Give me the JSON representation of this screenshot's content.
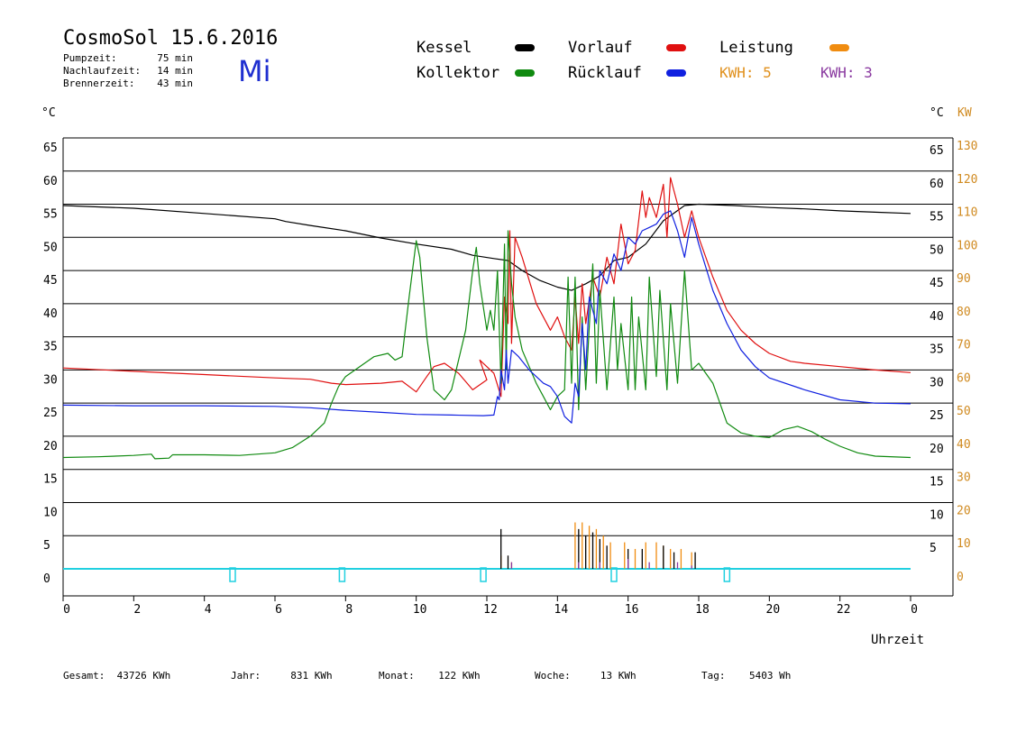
{
  "header": {
    "title": "CosmoSol 15.6.2016",
    "weekday": "Mi",
    "info": [
      {
        "label": "Pumpzeit:",
        "value": "75 min"
      },
      {
        "label": "Nachlaufzeit:",
        "value": "14 min"
      },
      {
        "label": "Brennerzeit:",
        "value": "43 min"
      }
    ]
  },
  "legend": {
    "items": [
      {
        "name": "Kessel",
        "color": "#000000"
      },
      {
        "name": "Vorlauf",
        "color": "#e01010"
      },
      {
        "name": "Leistung",
        "color": "#f08c10"
      },
      {
        "name": "Kollektor",
        "color": "#108a10"
      },
      {
        "name": "Rücklauf",
        "color": "#1020e0"
      }
    ],
    "kwh_orange": "KWH: 5",
    "kwh_purple": "KWH: 3"
  },
  "axes": {
    "left_unit": "°C",
    "right_unit_c": "°C",
    "right_unit_kw": "KW",
    "xlabel": "Uhrzeit"
  },
  "footer": [
    {
      "label": "Gesamt:",
      "value": "43726 KWh"
    },
    {
      "label": "Jahr:",
      "value": "831 KWh"
    },
    {
      "label": "Monat:",
      "value": "122 KWh"
    },
    {
      "label": "Woche:",
      "value": "13 KWh"
    },
    {
      "label": "Tag:",
      "value": "5403 Wh"
    }
  ],
  "chart_data": {
    "type": "line",
    "x_ticks": [
      "0",
      "2",
      "4",
      "6",
      "8",
      "10",
      "12",
      "14",
      "16",
      "18",
      "20",
      "22",
      "0"
    ],
    "xlim": [
      0,
      24
    ],
    "y_left_ticks": [
      "65",
      "60",
      "55",
      "50",
      "45",
      "40",
      "35",
      "30",
      "25",
      "20",
      "15",
      "10",
      "5",
      "0"
    ],
    "y_right_c_ticks": [
      "65",
      "60",
      "55",
      "50",
      "45",
      "40",
      "35",
      "30",
      "25",
      "20",
      "15",
      "10",
      "5",
      "0"
    ],
    "y_right_kw_ticks": [
      "130",
      "120",
      "110",
      "100",
      "90",
      "80",
      "70",
      "60",
      "50",
      "40",
      "30",
      "20",
      "10",
      "0"
    ],
    "ylim": [
      0,
      65
    ],
    "series": [
      {
        "name": "Kessel",
        "color": "#000000",
        "points": [
          [
            0,
            54.8
          ],
          [
            2,
            54.4
          ],
          [
            4,
            53.6
          ],
          [
            6,
            52.8
          ],
          [
            6.3,
            52.4
          ],
          [
            7,
            51.8
          ],
          [
            8,
            51
          ],
          [
            9,
            49.9
          ],
          [
            10,
            49
          ],
          [
            11,
            48.2
          ],
          [
            11.6,
            47.3
          ],
          [
            12.2,
            46.8
          ],
          [
            12.6,
            46.5
          ],
          [
            13,
            45
          ],
          [
            13.5,
            43.5
          ],
          [
            14,
            42.5
          ],
          [
            14.4,
            42
          ],
          [
            14.8,
            43
          ],
          [
            15.2,
            44.2
          ],
          [
            15.6,
            46.5
          ],
          [
            16,
            47
          ],
          [
            16.5,
            49
          ],
          [
            17,
            52.5
          ],
          [
            17.6,
            54.8
          ],
          [
            18,
            55
          ],
          [
            19,
            54.8
          ],
          [
            20,
            54.5
          ],
          [
            21,
            54.3
          ],
          [
            22,
            54
          ],
          [
            23,
            53.8
          ],
          [
            24,
            53.6
          ]
        ]
      },
      {
        "name": "Vorlauf",
        "color": "#e01010",
        "points": [
          [
            0,
            30.3
          ],
          [
            2,
            29.8
          ],
          [
            4,
            29.3
          ],
          [
            6,
            28.8
          ],
          [
            7,
            28.6
          ],
          [
            7.6,
            28
          ],
          [
            8,
            27.8
          ],
          [
            9,
            28
          ],
          [
            9.6,
            28.3
          ],
          [
            10,
            26.7
          ],
          [
            10.3,
            29
          ],
          [
            10.5,
            30.5
          ],
          [
            10.8,
            31
          ],
          [
            11.2,
            29.5
          ],
          [
            11.6,
            27
          ],
          [
            12,
            28.5
          ],
          [
            11.8,
            31.5
          ],
          [
            12.2,
            29.5
          ],
          [
            12.4,
            26
          ],
          [
            12.5,
            41
          ],
          [
            12.6,
            37
          ],
          [
            12.65,
            51
          ],
          [
            12.7,
            34
          ],
          [
            12.8,
            50
          ],
          [
            13,
            47
          ],
          [
            13.4,
            40
          ],
          [
            13.8,
            36
          ],
          [
            14,
            38
          ],
          [
            14.2,
            35
          ],
          [
            14.4,
            33
          ],
          [
            14.5,
            41
          ],
          [
            14.6,
            34
          ],
          [
            14.7,
            43
          ],
          [
            14.8,
            37
          ],
          [
            15,
            44
          ],
          [
            15.2,
            41
          ],
          [
            15.4,
            47
          ],
          [
            15.6,
            43
          ],
          [
            15.8,
            52
          ],
          [
            16,
            46
          ],
          [
            16.2,
            48
          ],
          [
            16.4,
            57
          ],
          [
            16.5,
            53
          ],
          [
            16.6,
            56
          ],
          [
            16.8,
            53
          ],
          [
            17,
            58
          ],
          [
            17.1,
            50
          ],
          [
            17.2,
            59
          ],
          [
            17.4,
            55
          ],
          [
            17.6,
            50
          ],
          [
            17.8,
            54
          ],
          [
            18,
            50
          ],
          [
            18.4,
            44
          ],
          [
            18.8,
            39
          ],
          [
            19.2,
            36
          ],
          [
            19.6,
            34
          ],
          [
            20,
            32.5
          ],
          [
            20.6,
            31.3
          ],
          [
            21,
            31
          ],
          [
            22,
            30.5
          ],
          [
            23,
            30
          ],
          [
            24,
            29.6
          ]
        ]
      },
      {
        "name": "Kollektor",
        "color": "#108a10",
        "points": [
          [
            0,
            16.8
          ],
          [
            1,
            16.9
          ],
          [
            2,
            17.1
          ],
          [
            2.5,
            17.3
          ],
          [
            2.6,
            16.6
          ],
          [
            3,
            16.7
          ],
          [
            3.1,
            17.2
          ],
          [
            4,
            17.2
          ],
          [
            5,
            17.1
          ],
          [
            6,
            17.5
          ],
          [
            6.5,
            18.3
          ],
          [
            7,
            20
          ],
          [
            7.4,
            22
          ],
          [
            7.6,
            25
          ],
          [
            7.8,
            27.5
          ],
          [
            8,
            29
          ],
          [
            8.4,
            30.5
          ],
          [
            8.8,
            32
          ],
          [
            9.2,
            32.5
          ],
          [
            9.4,
            31.5
          ],
          [
            9.6,
            32
          ],
          [
            9.8,
            41
          ],
          [
            10,
            49.5
          ],
          [
            10.1,
            47
          ],
          [
            10.3,
            35
          ],
          [
            10.5,
            27
          ],
          [
            10.8,
            25.5
          ],
          [
            11,
            27
          ],
          [
            11.4,
            36
          ],
          [
            11.6,
            45
          ],
          [
            11.7,
            48.5
          ],
          [
            11.8,
            43
          ],
          [
            12,
            36
          ],
          [
            12.1,
            39
          ],
          [
            12.2,
            36
          ],
          [
            12.3,
            45
          ],
          [
            12.4,
            28
          ],
          [
            12.5,
            49
          ],
          [
            12.55,
            30
          ],
          [
            12.6,
            51
          ],
          [
            12.7,
            43
          ],
          [
            12.8,
            38
          ],
          [
            13,
            33
          ],
          [
            13.4,
            28
          ],
          [
            13.6,
            26
          ],
          [
            13.8,
            24
          ],
          [
            14,
            26
          ],
          [
            14.2,
            27
          ],
          [
            14.3,
            44
          ],
          [
            14.4,
            28
          ],
          [
            14.5,
            44
          ],
          [
            14.6,
            24
          ],
          [
            14.7,
            38
          ],
          [
            14.8,
            27
          ],
          [
            15,
            46
          ],
          [
            15.1,
            28
          ],
          [
            15.2,
            42
          ],
          [
            15.4,
            27
          ],
          [
            15.6,
            41
          ],
          [
            15.7,
            30
          ],
          [
            15.8,
            37
          ],
          [
            16,
            27
          ],
          [
            16.1,
            41
          ],
          [
            16.2,
            27
          ],
          [
            16.3,
            38
          ],
          [
            16.5,
            27
          ],
          [
            16.6,
            44
          ],
          [
            16.8,
            29
          ],
          [
            16.9,
            42
          ],
          [
            17.1,
            27
          ],
          [
            17.2,
            40
          ],
          [
            17.4,
            28
          ],
          [
            17.6,
            45
          ],
          [
            17.8,
            30
          ],
          [
            18,
            31
          ],
          [
            18.4,
            28
          ],
          [
            18.8,
            22
          ],
          [
            19.2,
            20.5
          ],
          [
            19.6,
            20
          ],
          [
            20,
            19.8
          ],
          [
            20.4,
            21
          ],
          [
            20.8,
            21.5
          ],
          [
            21.2,
            20.7
          ],
          [
            21.6,
            19.5
          ],
          [
            22,
            18.5
          ],
          [
            22.5,
            17.5
          ],
          [
            23,
            17
          ],
          [
            24,
            16.8
          ]
        ]
      },
      {
        "name": "Rücklauf",
        "color": "#1020e0",
        "points": [
          [
            0,
            24.7
          ],
          [
            2,
            24.6
          ],
          [
            4,
            24.6
          ],
          [
            6,
            24.5
          ],
          [
            7,
            24.3
          ],
          [
            8,
            23.9
          ],
          [
            9,
            23.6
          ],
          [
            10,
            23.3
          ],
          [
            11,
            23.2
          ],
          [
            11.9,
            23.1
          ],
          [
            12.2,
            23.2
          ],
          [
            12.3,
            26
          ],
          [
            12.35,
            25.5
          ],
          [
            12.4,
            30
          ],
          [
            12.5,
            27
          ],
          [
            12.55,
            33
          ],
          [
            12.6,
            28
          ],
          [
            12.7,
            33
          ],
          [
            12.9,
            32
          ],
          [
            13.2,
            30
          ],
          [
            13.6,
            28
          ],
          [
            13.8,
            27.5
          ],
          [
            14,
            26
          ],
          [
            14.2,
            23
          ],
          [
            14.4,
            22
          ],
          [
            14.5,
            28
          ],
          [
            14.6,
            26
          ],
          [
            14.7,
            37
          ],
          [
            14.8,
            30
          ],
          [
            14.9,
            41
          ],
          [
            15.1,
            37
          ],
          [
            15.2,
            45
          ],
          [
            15.4,
            43
          ],
          [
            15.6,
            47.5
          ],
          [
            15.8,
            45
          ],
          [
            16,
            50
          ],
          [
            16.2,
            49
          ],
          [
            16.4,
            51
          ],
          [
            16.6,
            51.5
          ],
          [
            16.8,
            52
          ],
          [
            17,
            53.5
          ],
          [
            17.2,
            54
          ],
          [
            17.4,
            51
          ],
          [
            17.6,
            47
          ],
          [
            17.8,
            53
          ],
          [
            18,
            49
          ],
          [
            18.4,
            42
          ],
          [
            18.8,
            37
          ],
          [
            19.2,
            33
          ],
          [
            19.6,
            30.5
          ],
          [
            20,
            28.8
          ],
          [
            21,
            27
          ],
          [
            22,
            25.5
          ],
          [
            23,
            25
          ],
          [
            24,
            24.9
          ]
        ]
      }
    ],
    "power_series": {
      "orange": [
        [
          12.4,
          2
        ],
        [
          12.7,
          1
        ],
        [
          14.5,
          7
        ],
        [
          14.7,
          7
        ],
        [
          14.9,
          6.5
        ],
        [
          15.1,
          6
        ],
        [
          15.3,
          5
        ],
        [
          15.5,
          4
        ],
        [
          15.9,
          4
        ],
        [
          16.2,
          3
        ],
        [
          16.5,
          4
        ],
        [
          16.8,
          4
        ],
        [
          17,
          3.5
        ],
        [
          17.2,
          3
        ],
        [
          17.5,
          3
        ],
        [
          17.8,
          2.5
        ]
      ],
      "black": [
        [
          12.4,
          6
        ],
        [
          12.6,
          2
        ],
        [
          14.6,
          6
        ],
        [
          14.8,
          5
        ],
        [
          15,
          5.5
        ],
        [
          15.2,
          4.5
        ],
        [
          15.4,
          3.5
        ],
        [
          16,
          3
        ],
        [
          16.4,
          3
        ],
        [
          17,
          3.5
        ],
        [
          17.3,
          2.5
        ],
        [
          17.9,
          2.5
        ]
      ],
      "purple": [
        [
          12.7,
          1
        ],
        [
          14.6,
          1
        ],
        [
          15.2,
          1
        ],
        [
          16,
          1.5
        ],
        [
          16.6,
          1
        ],
        [
          17.4,
          1
        ],
        [
          17.8,
          0.5
        ]
      ]
    },
    "pump_marks_x": [
      4.8,
      7.9,
      11.9,
      15.6,
      18.8
    ]
  }
}
